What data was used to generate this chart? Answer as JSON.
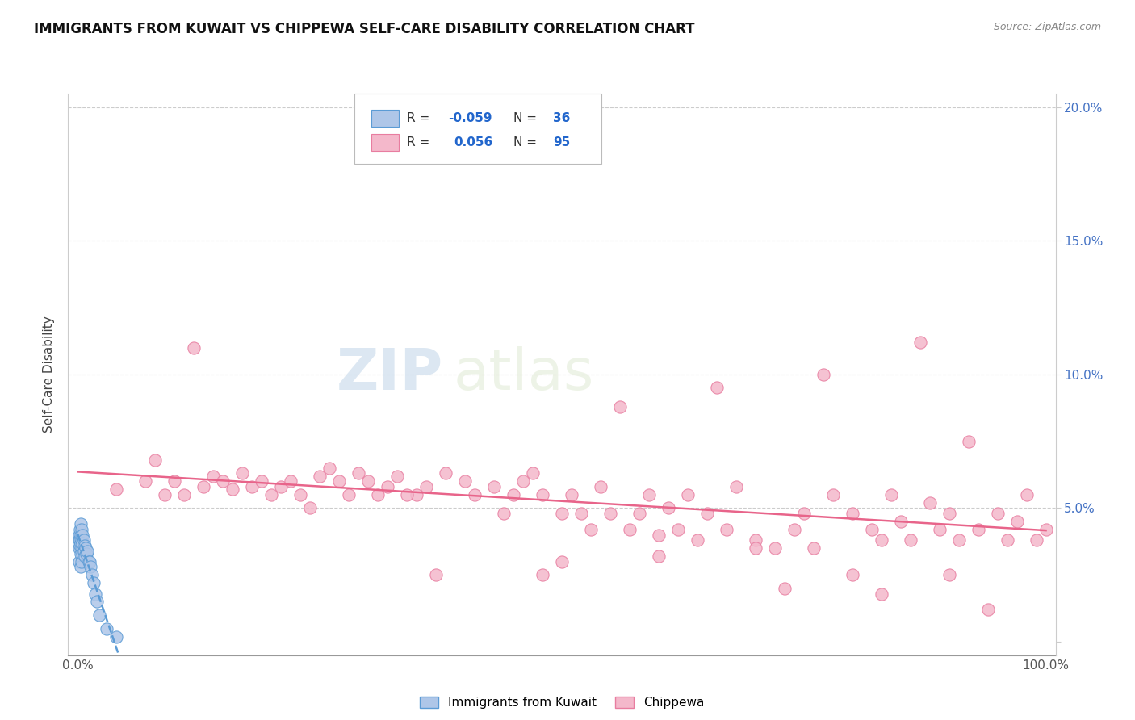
{
  "title": "IMMIGRANTS FROM KUWAIT VS CHIPPEWA SELF-CARE DISABILITY CORRELATION CHART",
  "source": "Source: ZipAtlas.com",
  "ylabel": "Self-Care Disability",
  "color_kuwait": "#aec6e8",
  "color_kuwait_edge": "#5b9bd5",
  "color_kuwait_line": "#5b9bd5",
  "color_chippewa": "#f4b8cb",
  "color_chippewa_edge": "#e87da0",
  "color_chippewa_line": "#e8648a",
  "watermark_zip": "ZIP",
  "watermark_atlas": "atlas",
  "legend_r1_label": "R = ",
  "legend_r1_value": "-0.059",
  "legend_n1": "N = 36",
  "legend_r2_label": "R =  ",
  "legend_r2_value": "0.056",
  "legend_n2": "N = 95",
  "kuwait_points_x": [
    0.001,
    0.001,
    0.001,
    0.001,
    0.002,
    0.002,
    0.002,
    0.003,
    0.003,
    0.003,
    0.003,
    0.003,
    0.004,
    0.004,
    0.004,
    0.004,
    0.005,
    0.005,
    0.005,
    0.006,
    0.006,
    0.007,
    0.007,
    0.008,
    0.009,
    0.01,
    0.011,
    0.012,
    0.013,
    0.015,
    0.016,
    0.018,
    0.02,
    0.022,
    0.03,
    0.04
  ],
  "kuwait_points_y": [
    0.04,
    0.038,
    0.035,
    0.03,
    0.042,
    0.038,
    0.036,
    0.044,
    0.04,
    0.037,
    0.033,
    0.028,
    0.042,
    0.038,
    0.035,
    0.03,
    0.04,
    0.037,
    0.033,
    0.038,
    0.034,
    0.036,
    0.032,
    0.035,
    0.033,
    0.034,
    0.03,
    0.03,
    0.028,
    0.025,
    0.022,
    0.018,
    0.015,
    0.01,
    0.005,
    0.002
  ],
  "chippewa_points_x": [
    0.04,
    0.07,
    0.09,
    0.1,
    0.11,
    0.13,
    0.14,
    0.15,
    0.16,
    0.17,
    0.18,
    0.19,
    0.2,
    0.21,
    0.22,
    0.23,
    0.25,
    0.26,
    0.27,
    0.28,
    0.29,
    0.3,
    0.31,
    0.32,
    0.33,
    0.35,
    0.36,
    0.38,
    0.4,
    0.41,
    0.43,
    0.45,
    0.46,
    0.47,
    0.48,
    0.5,
    0.51,
    0.52,
    0.54,
    0.55,
    0.57,
    0.58,
    0.59,
    0.6,
    0.61,
    0.62,
    0.63,
    0.64,
    0.65,
    0.67,
    0.68,
    0.7,
    0.72,
    0.74,
    0.75,
    0.76,
    0.78,
    0.8,
    0.82,
    0.83,
    0.84,
    0.85,
    0.86,
    0.88,
    0.89,
    0.9,
    0.91,
    0.93,
    0.95,
    0.96,
    0.97,
    0.98,
    0.99,
    1.0,
    0.08,
    0.12,
    0.24,
    0.34,
    0.44,
    0.53,
    0.56,
    0.66,
    0.77,
    0.87,
    0.92,
    0.5,
    0.6,
    0.7,
    0.8,
    0.9,
    0.37,
    0.48,
    0.73,
    0.83,
    0.94
  ],
  "chippewa_points_y": [
    0.057,
    0.06,
    0.055,
    0.06,
    0.055,
    0.058,
    0.062,
    0.06,
    0.057,
    0.063,
    0.058,
    0.06,
    0.055,
    0.058,
    0.06,
    0.055,
    0.062,
    0.065,
    0.06,
    0.055,
    0.063,
    0.06,
    0.055,
    0.058,
    0.062,
    0.055,
    0.058,
    0.063,
    0.06,
    0.055,
    0.058,
    0.055,
    0.06,
    0.063,
    0.055,
    0.048,
    0.055,
    0.048,
    0.058,
    0.048,
    0.042,
    0.048,
    0.055,
    0.04,
    0.05,
    0.042,
    0.055,
    0.038,
    0.048,
    0.042,
    0.058,
    0.038,
    0.035,
    0.042,
    0.048,
    0.035,
    0.055,
    0.048,
    0.042,
    0.038,
    0.055,
    0.045,
    0.038,
    0.052,
    0.042,
    0.048,
    0.038,
    0.042,
    0.048,
    0.038,
    0.045,
    0.055,
    0.038,
    0.042,
    0.068,
    0.11,
    0.05,
    0.055,
    0.048,
    0.042,
    0.088,
    0.095,
    0.1,
    0.112,
    0.075,
    0.03,
    0.032,
    0.035,
    0.025,
    0.025,
    0.025,
    0.025,
    0.02,
    0.018,
    0.012
  ]
}
